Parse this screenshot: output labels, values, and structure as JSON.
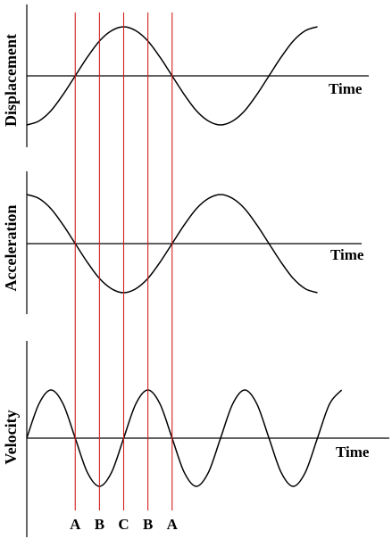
{
  "chart_data": {
    "type": "line",
    "panels": [
      {
        "ylabel": "Displacement",
        "xlabel": "Time",
        "xlim": [
          0,
          300
        ],
        "ylim": [
          -1,
          1
        ],
        "x": [
          0,
          12.5,
          25,
          37.5,
          50,
          62.5,
          75,
          87.5,
          100,
          112.5,
          125,
          137.5,
          150,
          162.5,
          175,
          187.5,
          200,
          212.5,
          225,
          237.5,
          250,
          262.5,
          275,
          287.5,
          300
        ],
        "values": [
          -1,
          -0.92,
          -0.71,
          -0.38,
          0,
          0.38,
          0.71,
          0.92,
          1,
          0.92,
          0.71,
          0.38,
          0,
          -0.38,
          -0.71,
          -0.92,
          -1,
          -0.92,
          -0.71,
          -0.38,
          0,
          0.38,
          0.71,
          0.92,
          1
        ]
      },
      {
        "ylabel": "Acceleration",
        "xlabel": "Time",
        "xlim": [
          0,
          300
        ],
        "ylim": [
          -1,
          1
        ],
        "x": [
          0,
          12.5,
          25,
          37.5,
          50,
          62.5,
          75,
          87.5,
          100,
          112.5,
          125,
          137.5,
          150,
          162.5,
          175,
          187.5,
          200,
          212.5,
          225,
          237.5,
          250,
          262.5,
          275,
          287.5,
          300
        ],
        "values": [
          1,
          0.92,
          0.71,
          0.38,
          0,
          -0.38,
          -0.71,
          -0.92,
          -1,
          -0.92,
          -0.71,
          -0.38,
          0,
          0.38,
          0.71,
          0.92,
          1,
          0.92,
          0.71,
          0.38,
          0,
          -0.38,
          -0.71,
          -0.92,
          -1
        ]
      },
      {
        "ylabel": "Velocity",
        "xlabel": "Time",
        "xlim": [
          0,
          325
        ],
        "ylim": [
          -1,
          1
        ],
        "x": [
          0,
          12.5,
          25,
          37.5,
          50,
          62.5,
          75,
          87.5,
          100,
          112.5,
          125,
          137.5,
          150,
          162.5,
          175,
          187.5,
          200,
          212.5,
          225,
          237.5,
          250,
          262.5,
          275,
          287.5,
          300,
          312.5,
          325
        ],
        "values": [
          0,
          0.71,
          1,
          0.71,
          0,
          -0.71,
          -1,
          -0.71,
          0,
          0.71,
          1,
          0.71,
          0,
          -0.71,
          -1,
          -0.71,
          0,
          0.71,
          1,
          0.71,
          0,
          -0.71,
          -1,
          -0.71,
          0,
          0.71,
          1
        ]
      }
    ],
    "markers": [
      {
        "label": "A",
        "x": 50
      },
      {
        "label": "B",
        "x": 75
      },
      {
        "label": "C",
        "x": 100
      },
      {
        "label": "B",
        "x": 125
      },
      {
        "label": "A",
        "x": 150
      }
    ],
    "marker_color": "#d21f1f",
    "line_color": "#000000",
    "grid": false
  }
}
